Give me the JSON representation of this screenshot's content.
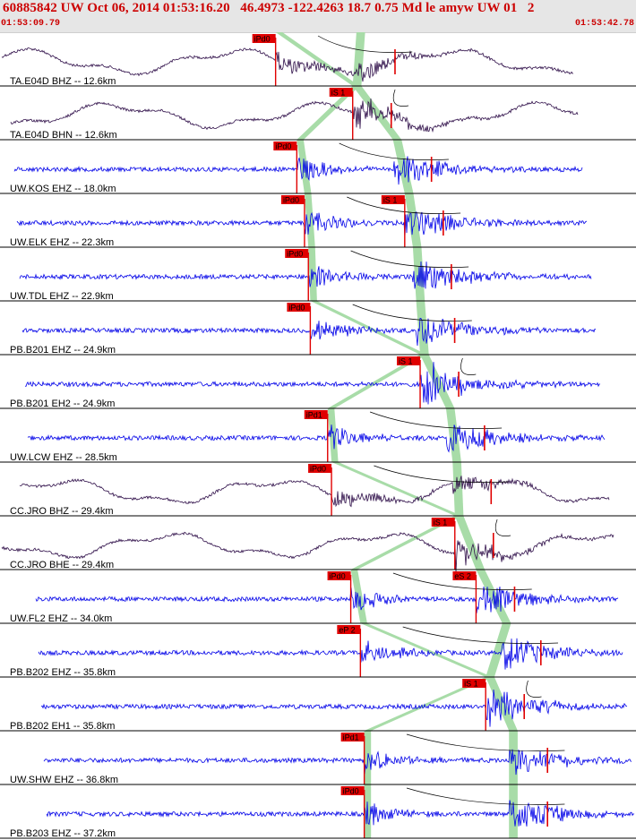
{
  "header": {
    "title": "60885842 UW Oct 06, 2014 01:53:16.20   46.4973 -122.4263 18.7 0.75 Md le amyw UW 01   2",
    "time_start": "01:53:09.79",
    "time_end": "01:53:42.78"
  },
  "colors": {
    "short_period": "#0000e8",
    "broadband": "#30104a",
    "pick": "#e00000",
    "window": "#a8dca8",
    "grid": "#000000"
  },
  "traces": [
    {
      "label": "TA.E04D BHZ -- 12.6km",
      "kind": "broadband",
      "picks": [
        {
          "label": "iPd0",
          "t": 14.3
        }
      ]
    },
    {
      "label": "TA.E04D BHN -- 12.6km",
      "kind": "broadband",
      "picks": [
        {
          "label": "iS 1",
          "t": 18.3
        }
      ]
    },
    {
      "label": "UW.KOS EHZ -- 18.0km",
      "kind": "short_period",
      "picks": [
        {
          "label": "iPd0",
          "t": 15.4
        }
      ]
    },
    {
      "label": "UW.ELK EHZ -- 22.3km",
      "kind": "short_period",
      "picks": [
        {
          "label": "iPd0",
          "t": 15.8
        },
        {
          "label": "iS 1",
          "t": 21.0
        }
      ]
    },
    {
      "label": "UW.TDL EHZ -- 22.9km",
      "kind": "short_period",
      "picks": [
        {
          "label": "iPd0",
          "t": 16.0
        }
      ]
    },
    {
      "label": "PB.B201 EHZ -- 24.9km",
      "kind": "short_period",
      "picks": [
        {
          "label": "iPd0",
          "t": 16.1
        }
      ]
    },
    {
      "label": "PB.B201 EH2 -- 24.9km",
      "kind": "short_period",
      "picks": [
        {
          "label": "iS 1",
          "t": 21.8
        }
      ]
    },
    {
      "label": "UW.LCW EHZ -- 28.5km",
      "kind": "short_period",
      "picks": [
        {
          "label": "iPd1",
          "t": 17.0
        }
      ]
    },
    {
      "label": "CC.JRO BHZ -- 29.4km",
      "kind": "broadband",
      "picks": [
        {
          "label": "iPd0",
          "t": 17.2
        }
      ]
    },
    {
      "label": "CC.JRO BHE -- 29.4km",
      "kind": "broadband",
      "picks": [
        {
          "label": "iS 1",
          "t": 23.6
        }
      ]
    },
    {
      "label": "UW.FL2 EHZ -- 34.0km",
      "kind": "short_period",
      "picks": [
        {
          "label": "iPd0",
          "t": 18.2
        },
        {
          "label": "eS 2",
          "t": 24.7
        }
      ]
    },
    {
      "label": "PB.B202 EHZ -- 35.8km",
      "kind": "short_period",
      "picks": [
        {
          "label": "eP 2",
          "t": 18.7
        }
      ]
    },
    {
      "label": "PB.B202 EH1 -- 35.8km",
      "kind": "short_period",
      "picks": [
        {
          "label": "iS 1",
          "t": 25.2
        }
      ]
    },
    {
      "label": "UW.SHW EHZ -- 36.8km",
      "kind": "short_period",
      "picks": [
        {
          "label": "iPd1",
          "t": 18.9
        }
      ]
    },
    {
      "label": "PB.B203 EHZ -- 37.2km",
      "kind": "short_period",
      "picks": [
        {
          "label": "iPd0",
          "t": 18.9
        }
      ]
    }
  ]
}
